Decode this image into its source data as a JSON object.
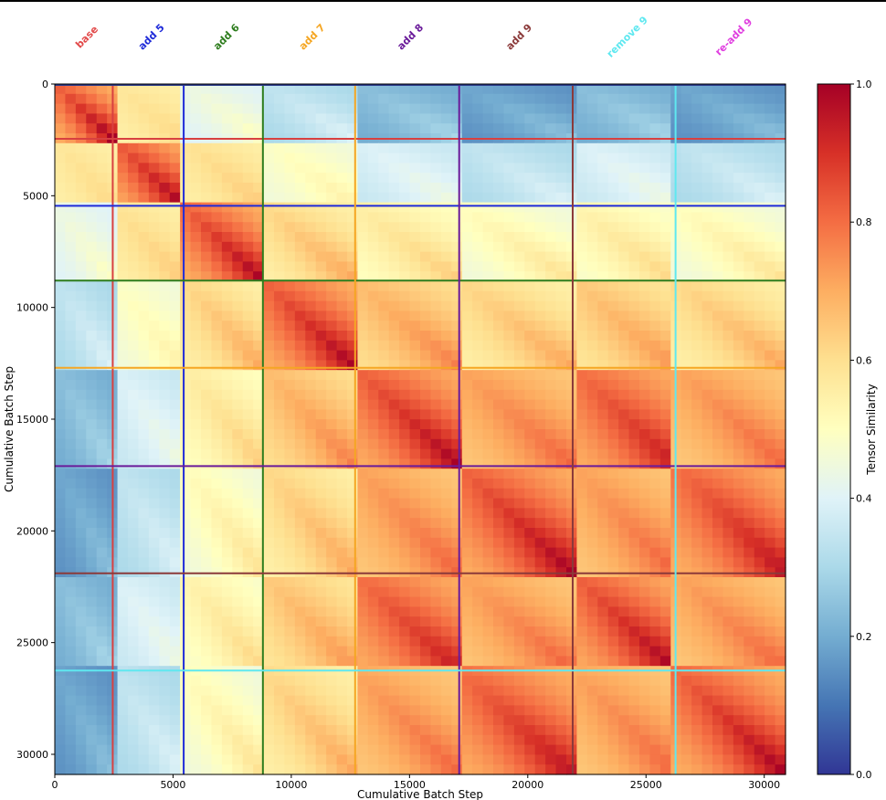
{
  "chart_data": {
    "type": "heatmap",
    "title": "",
    "xlabel": "Cumulative Batch Step",
    "ylabel": "Cumulative Batch Step",
    "xlim": [
      0,
      30900
    ],
    "ylim": [
      30900,
      0
    ],
    "xticks": [
      0,
      5000,
      10000,
      15000,
      20000,
      25000,
      30000
    ],
    "yticks": [
      0,
      5000,
      10000,
      15000,
      20000,
      25000,
      30000
    ],
    "colorbar": {
      "label": "Tensor Similarity",
      "range": [
        0.0,
        1.0
      ],
      "ticks": [
        0.0,
        0.2,
        0.4,
        0.6,
        0.8,
        1.0
      ],
      "colormap": "RdYlBu_r",
      "stops": [
        "#313695",
        "#4575b4",
        "#74add1",
        "#abd9e9",
        "#e0f3f8",
        "#ffffbf",
        "#fee090",
        "#fdae61",
        "#f46d43",
        "#d73027",
        "#a50026"
      ]
    },
    "phases": [
      {
        "name": "base",
        "start": 0,
        "end": 2450,
        "color": "#e24a4a"
      },
      {
        "name": "add 5",
        "start": 2450,
        "end": 5450,
        "color": "#1f2bd9"
      },
      {
        "name": "add 6",
        "start": 5450,
        "end": 8800,
        "color": "#2e7d1e"
      },
      {
        "name": "add 7",
        "start": 8800,
        "end": 12700,
        "color": "#f5a623"
      },
      {
        "name": "add 8",
        "start": 12700,
        "end": 17100,
        "color": "#6a1b9a"
      },
      {
        "name": "add 9",
        "start": 17100,
        "end": 21900,
        "color": "#8b3a3a"
      },
      {
        "name": "remove 9",
        "start": 21900,
        "end": 26250,
        "color": "#5fe8f0"
      },
      {
        "name": "re-add 9",
        "start": 26250,
        "end": 30900,
        "color": "#e040e0"
      }
    ],
    "boundaries": [
      {
        "value": 2450,
        "color": "#d84040"
      },
      {
        "value": 5450,
        "color": "#1f2bd9"
      },
      {
        "value": 8800,
        "color": "#2e7d1e"
      },
      {
        "value": 12700,
        "color": "#f5a623"
      },
      {
        "value": 17100,
        "color": "#6a1b9a"
      },
      {
        "value": 21900,
        "color": "#8b3a3a"
      },
      {
        "value": 26250,
        "color": "#5fe8f0"
      }
    ],
    "block_similarity_min": [
      [
        0.7,
        0.55,
        0.4,
        0.3,
        0.2,
        0.15,
        0.2,
        0.15
      ],
      [
        0.55,
        0.7,
        0.55,
        0.45,
        0.35,
        0.3,
        0.35,
        0.3
      ],
      [
        0.4,
        0.55,
        0.7,
        0.55,
        0.5,
        0.45,
        0.48,
        0.45
      ],
      [
        0.3,
        0.45,
        0.55,
        0.7,
        0.6,
        0.55,
        0.58,
        0.55
      ],
      [
        0.2,
        0.35,
        0.5,
        0.6,
        0.7,
        0.65,
        0.7,
        0.65
      ],
      [
        0.15,
        0.3,
        0.45,
        0.55,
        0.65,
        0.7,
        0.65,
        0.7
      ],
      [
        0.2,
        0.35,
        0.48,
        0.58,
        0.7,
        0.65,
        0.7,
        0.65
      ],
      [
        0.15,
        0.3,
        0.45,
        0.55,
        0.65,
        0.7,
        0.65,
        0.7
      ]
    ],
    "block_similarity_max": [
      [
        1.0,
        0.62,
        0.5,
        0.4,
        0.3,
        0.25,
        0.3,
        0.25
      ],
      [
        0.62,
        1.0,
        0.65,
        0.55,
        0.45,
        0.4,
        0.45,
        0.4
      ],
      [
        0.5,
        0.65,
        1.0,
        0.72,
        0.65,
        0.6,
        0.63,
        0.6
      ],
      [
        0.4,
        0.55,
        0.72,
        1.0,
        0.78,
        0.72,
        0.75,
        0.72
      ],
      [
        0.3,
        0.45,
        0.65,
        0.78,
        1.0,
        0.82,
        0.95,
        0.82
      ],
      [
        0.25,
        0.4,
        0.6,
        0.72,
        0.82,
        1.0,
        0.82,
        0.97
      ],
      [
        0.3,
        0.45,
        0.63,
        0.75,
        0.95,
        0.82,
        1.0,
        0.82
      ],
      [
        0.25,
        0.4,
        0.6,
        0.72,
        0.82,
        0.97,
        0.82,
        1.0
      ]
    ]
  }
}
